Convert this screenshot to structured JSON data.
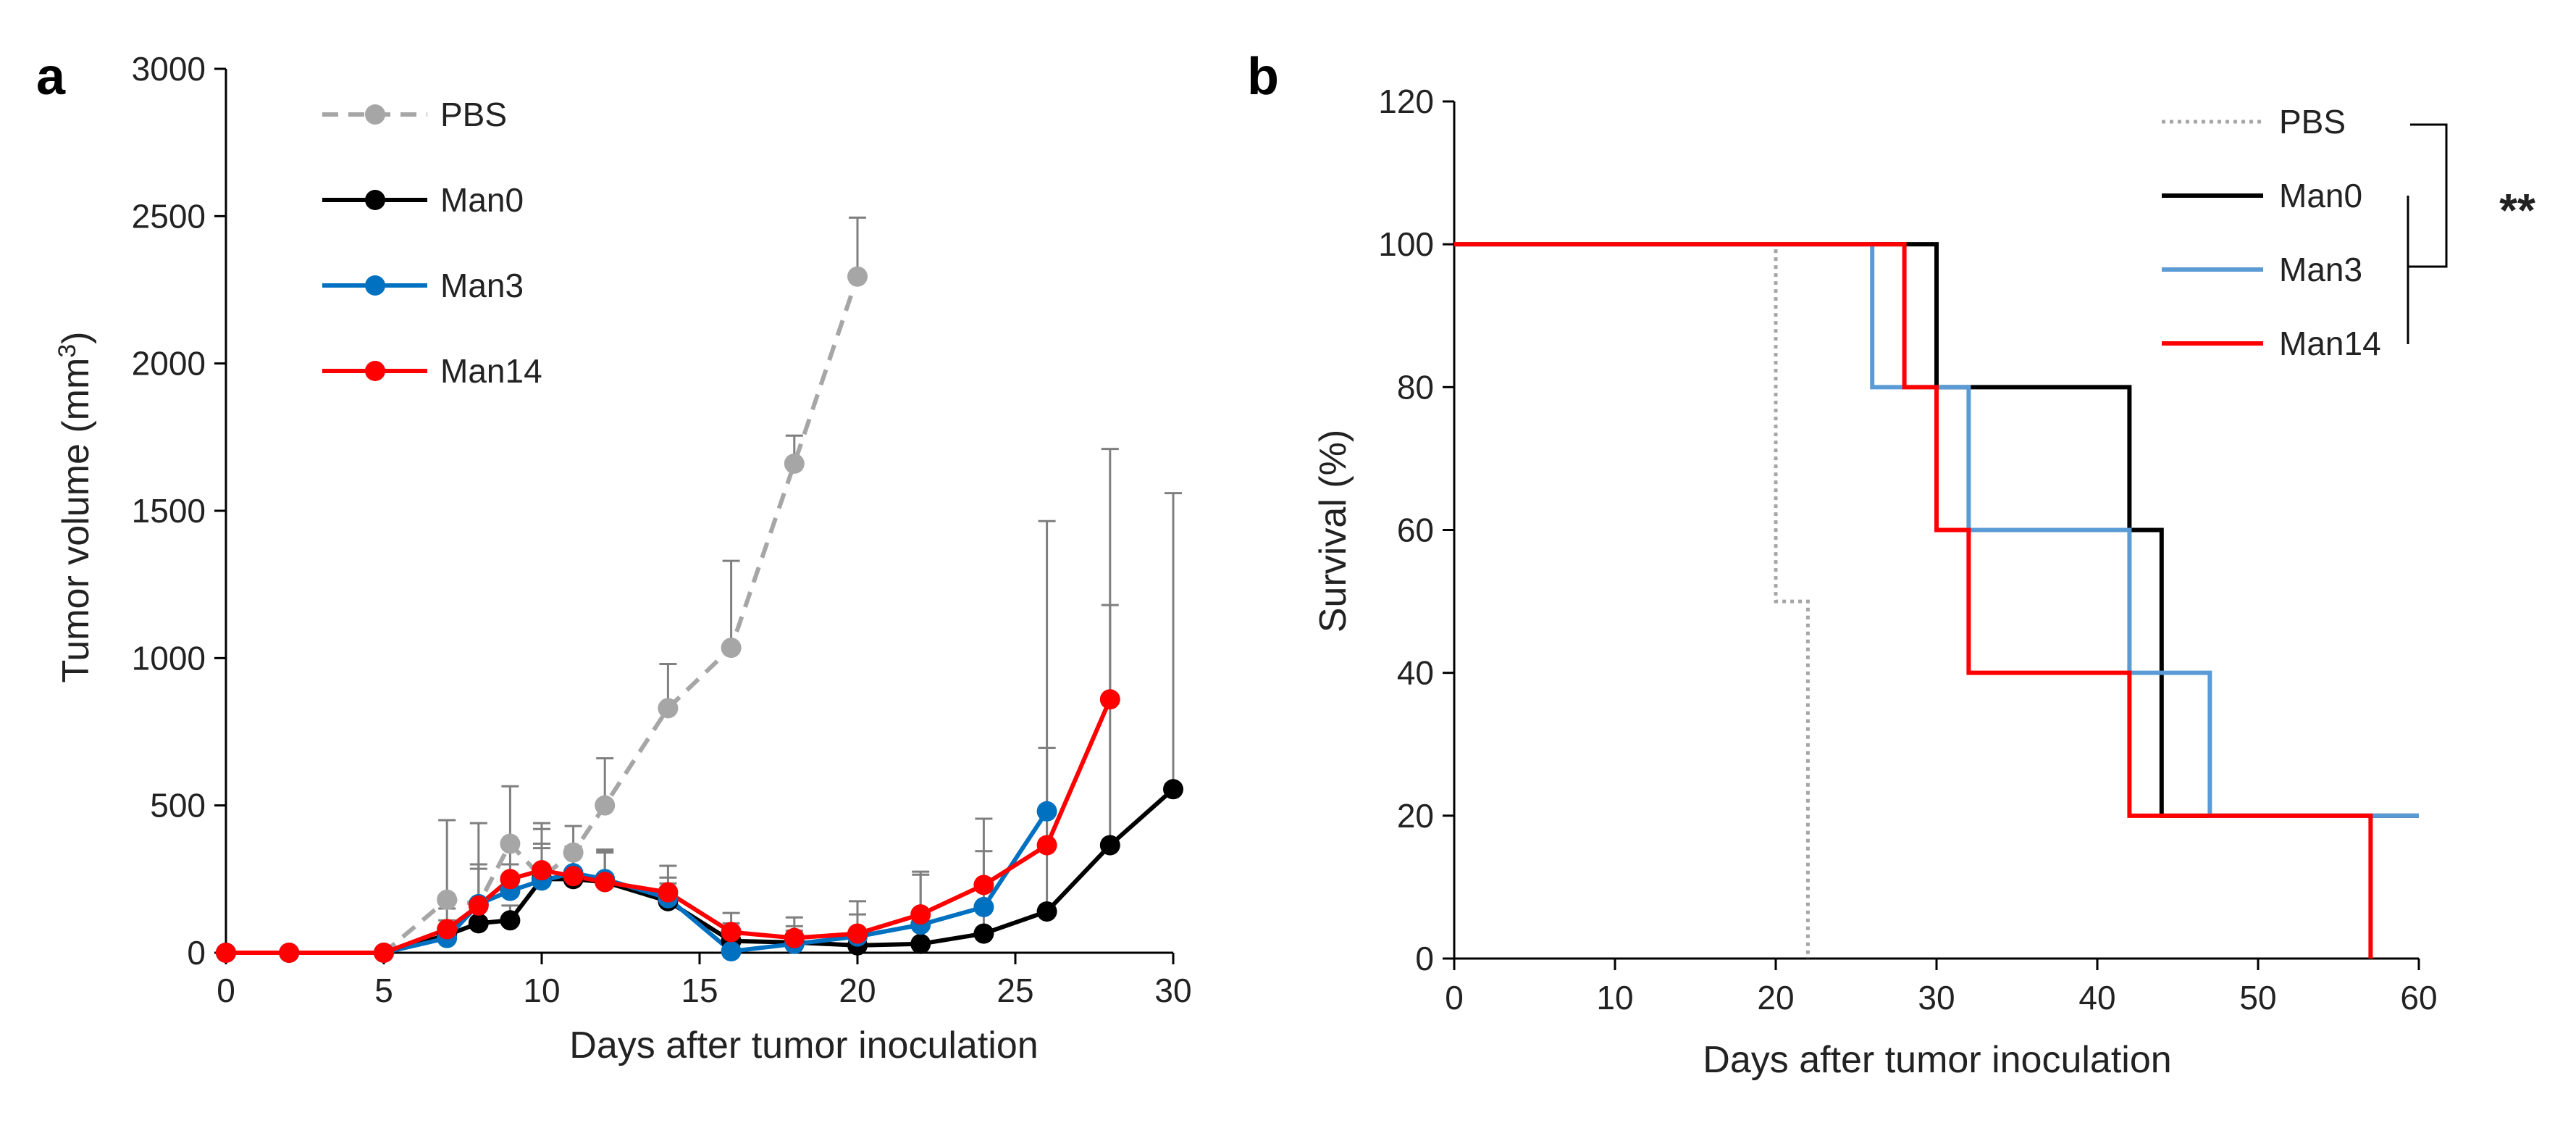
{
  "chart_data": [
    {
      "panel_label": "a",
      "type": "line",
      "title": "",
      "xlabel": "Days after tumor inoculation",
      "ylabel_prefix": "Tumor volume (mm",
      "ylabel_sup": "3",
      "ylabel_suffix": ")",
      "xlim": [
        0,
        30
      ],
      "ylim": [
        0,
        3000
      ],
      "xticks": [
        "0",
        "5",
        "10",
        "15",
        "20",
        "25",
        "30"
      ],
      "yticks": [
        "0",
        "500",
        "1000",
        "1500",
        "2000",
        "2500",
        "3000"
      ],
      "legend_position": "top-left",
      "series": [
        {
          "name": "PBS",
          "color": "#a6a6a6",
          "dashed": true,
          "x": [
            0,
            2,
            5,
            7,
            8,
            9,
            10,
            11,
            12,
            14,
            16,
            18,
            20
          ],
          "y": [
            0,
            0,
            0,
            180,
            165,
            370,
            255,
            340,
            500,
            830,
            1035,
            1660,
            2295
          ],
          "err": [
            0,
            0,
            0,
            270,
            275,
            195,
            185,
            90,
            160,
            150,
            295,
            95,
            200
          ]
        },
        {
          "name": "Man0",
          "color": "#000000",
          "dashed": false,
          "x": [
            0,
            2,
            5,
            7,
            8,
            9,
            10,
            11,
            12,
            14,
            16,
            18,
            20,
            22,
            24,
            26,
            28,
            30
          ],
          "y": [
            0,
            0,
            0,
            60,
            100,
            110,
            250,
            250,
            240,
            175,
            40,
            35,
            25,
            30,
            65,
            140,
            365,
            555
          ],
          "err": [
            0,
            0,
            0,
            30,
            80,
            50,
            120,
            95,
            100,
            60,
            60,
            40,
            50,
            60,
            80,
            555,
            815,
            1005
          ]
        },
        {
          "name": "Man3",
          "color": "#0070c0",
          "dashed": false,
          "x": [
            0,
            2,
            5,
            7,
            8,
            9,
            10,
            11,
            12,
            14,
            16,
            18,
            20,
            22,
            24,
            26
          ],
          "y": [
            0,
            0,
            0,
            50,
            165,
            210,
            245,
            270,
            250,
            185,
            5,
            30,
            55,
            95,
            155,
            480
          ],
          "err": [
            0,
            0,
            0,
            60,
            120,
            90,
            110,
            80,
            95,
            70,
            70,
            60,
            75,
            170,
            190,
            985
          ]
        },
        {
          "name": "Man14",
          "color": "#ff0000",
          "dashed": false,
          "x": [
            0,
            2,
            5,
            7,
            8,
            9,
            10,
            11,
            12,
            14,
            16,
            18,
            20,
            22,
            24,
            26,
            28
          ],
          "y": [
            0,
            0,
            0,
            80,
            160,
            250,
            280,
            260,
            240,
            205,
            70,
            50,
            65,
            130,
            230,
            365,
            860
          ],
          "err": [
            0,
            0,
            0,
            70,
            140,
            110,
            140,
            100,
            110,
            90,
            65,
            70,
            110,
            145,
            225,
            330,
            850
          ]
        }
      ]
    },
    {
      "panel_label": "b",
      "type": "line",
      "subtype": "step",
      "title": "",
      "xlabel": "Days after tumor inoculation",
      "ylabel": "Survival (%)",
      "xlim": [
        0,
        60
      ],
      "ylim": [
        0,
        120
      ],
      "xticks": [
        "0",
        "10",
        "20",
        "30",
        "40",
        "50",
        "60"
      ],
      "yticks": [
        "0",
        "20",
        "40",
        "60",
        "80",
        "100",
        "120"
      ],
      "legend_position": "top-right",
      "significance": "**",
      "series": [
        {
          "name": "PBS",
          "color": "#a6a6a6",
          "dotted": true,
          "x": [
            0,
            20,
            20,
            22,
            22
          ],
          "y": [
            100,
            100,
            50,
            50,
            0
          ]
        },
        {
          "name": "Man0",
          "color": "#000000",
          "dotted": false,
          "x": [
            0,
            30,
            30,
            42,
            42,
            44,
            44,
            60
          ],
          "y": [
            100,
            100,
            80,
            80,
            60,
            60,
            20,
            20
          ]
        },
        {
          "name": "Man3",
          "color": "#5b9bd5",
          "dotted": false,
          "x": [
            0,
            26,
            26,
            32,
            32,
            42,
            42,
            47,
            47,
            60
          ],
          "y": [
            100,
            100,
            80,
            80,
            60,
            60,
            40,
            40,
            20,
            20
          ]
        },
        {
          "name": "Man14",
          "color": "#ff0000",
          "dotted": false,
          "x": [
            0,
            28,
            28,
            30,
            30,
            32,
            32,
            42,
            42,
            57,
            57
          ],
          "y": [
            100,
            100,
            80,
            80,
            60,
            60,
            40,
            40,
            20,
            20,
            0
          ]
        }
      ]
    }
  ]
}
